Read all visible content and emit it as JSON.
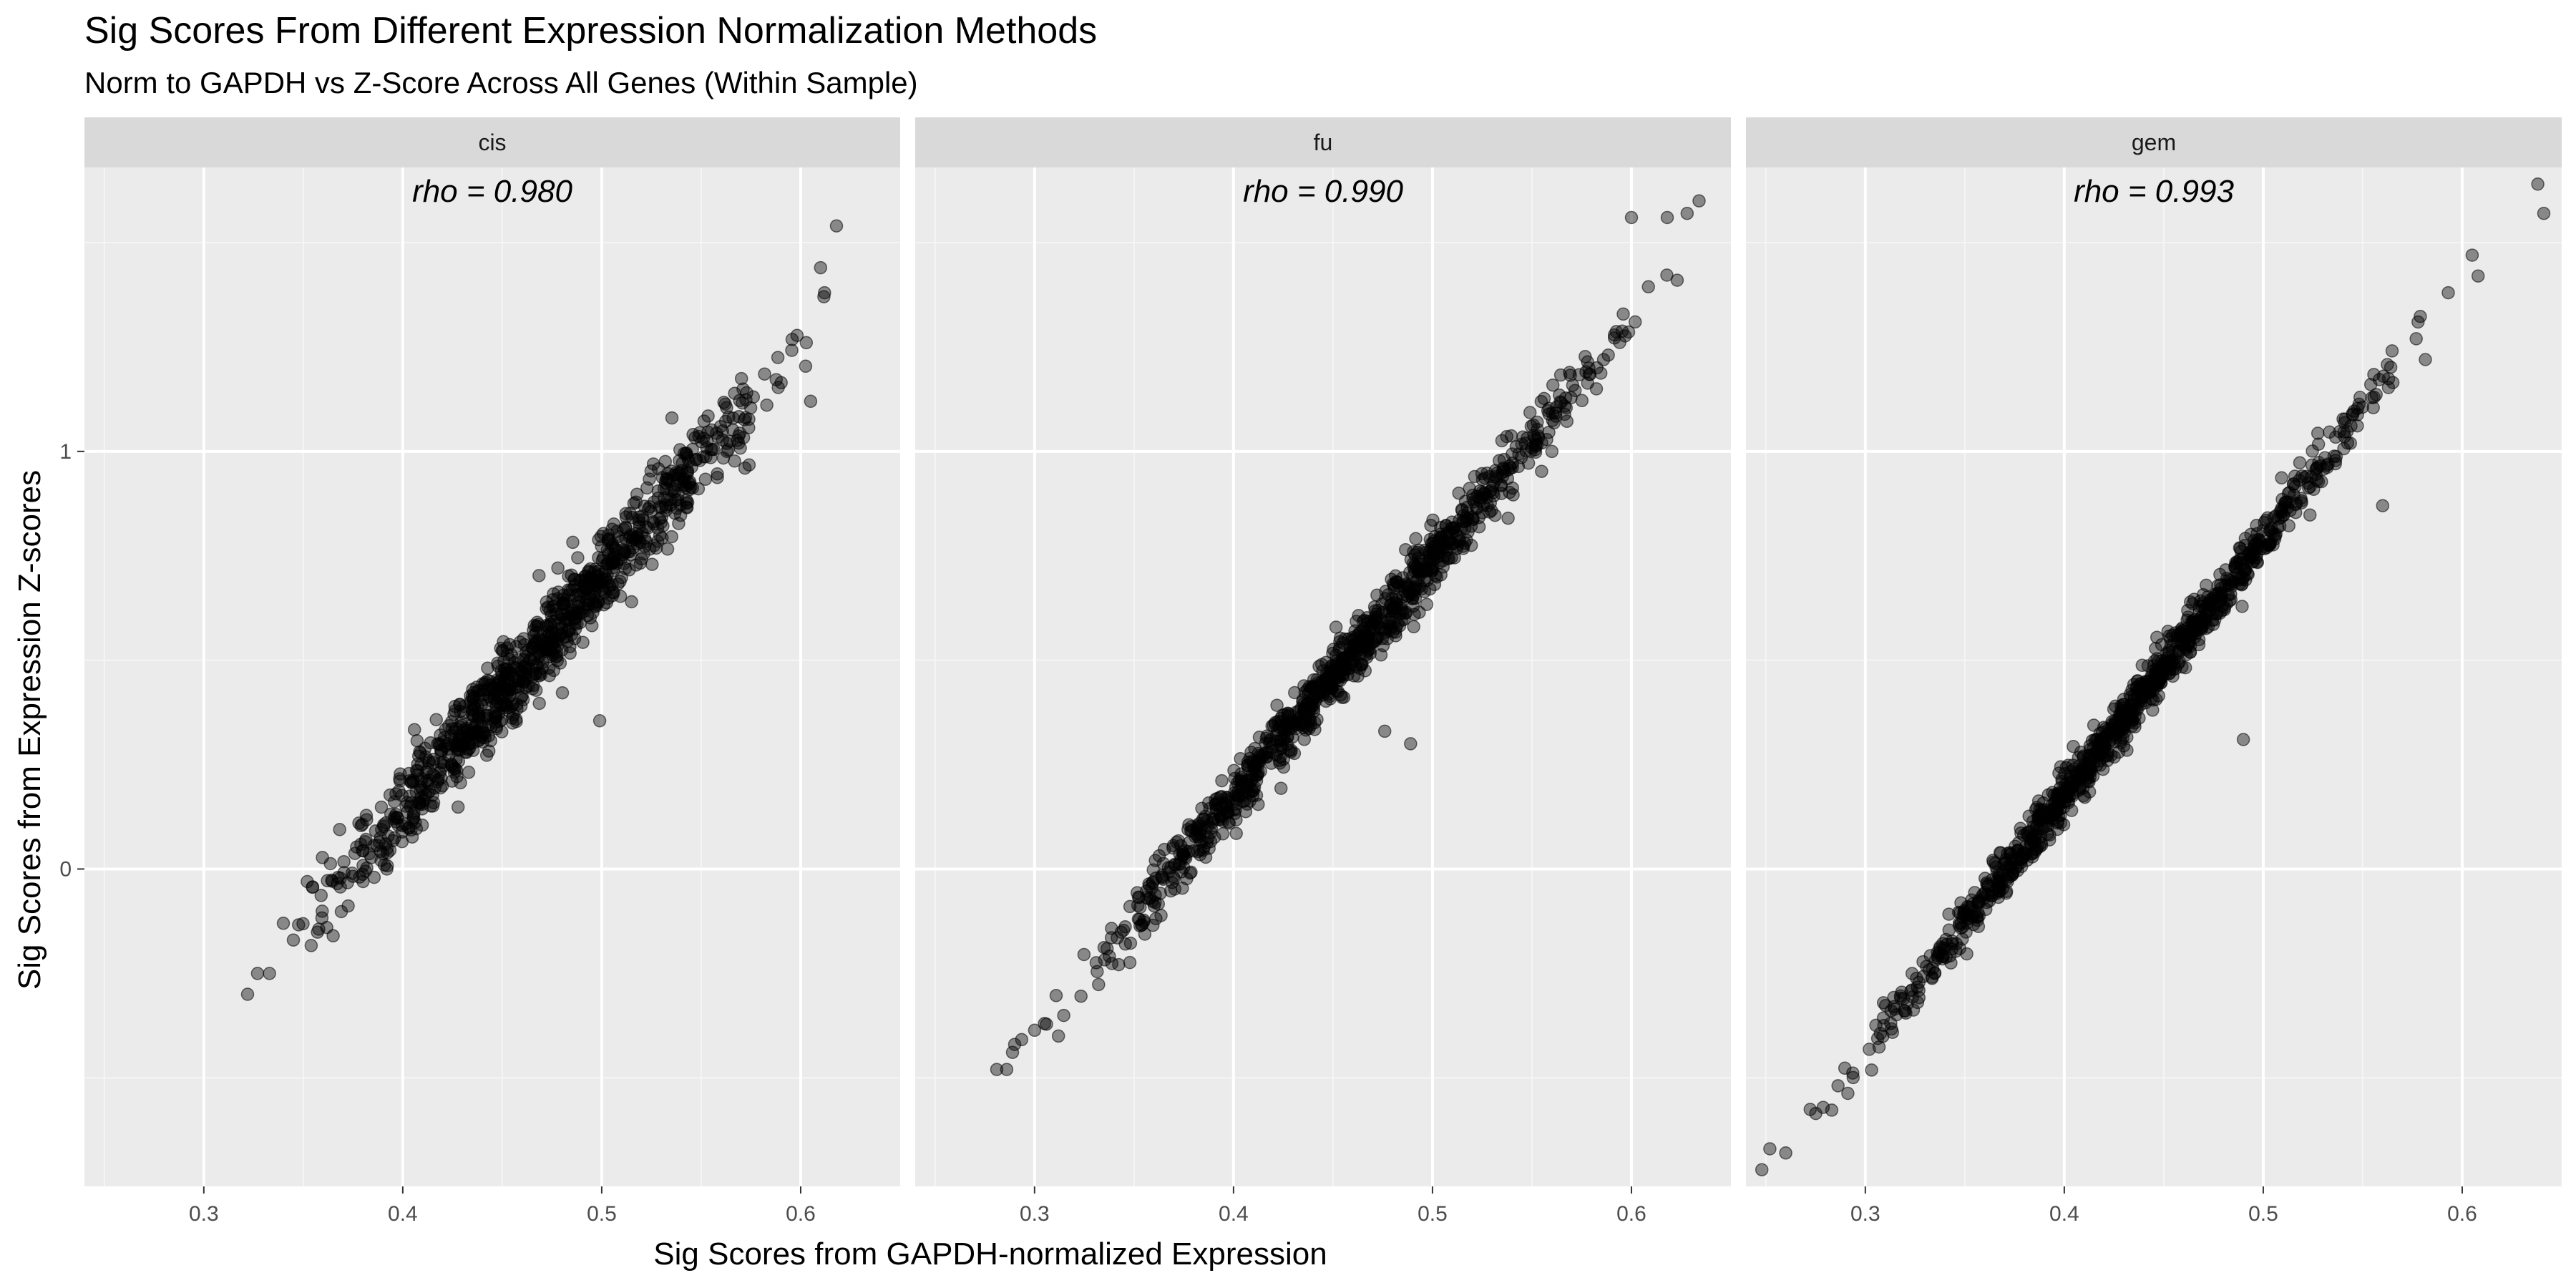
{
  "chart_data": {
    "type": "scatter",
    "title": "Sig Scores From Different Expression Normalization Methods",
    "subtitle": "Norm to GAPDH vs Z-Score Across All Genes (Within Sample)",
    "xlabel": "Sig Scores from GAPDH-normalized Expression",
    "ylabel": "Sig Scores from Expression Z-scores",
    "xlim": [
      0.24,
      0.65
    ],
    "ylim": [
      -0.76,
      1.68
    ],
    "x_ticks": [
      "0.3",
      "0.4",
      "0.5",
      "0.6"
    ],
    "y_ticks": [
      "0",
      "1"
    ],
    "x_tick_values": [
      0.3,
      0.4,
      0.5,
      0.6
    ],
    "y_tick_values": [
      0,
      1
    ],
    "grid": true,
    "point_color": "#000000",
    "point_alpha": 0.42,
    "facets": [
      {
        "label": "cis",
        "annotation": "rho = 0.980",
        "trend": {
          "x_start": 0.32,
          "x_end": 0.62,
          "slope": 5.55,
          "intercept": -2.07,
          "noise_sd": 0.05,
          "n": 950,
          "seed": 11
        },
        "points": [
          {
            "x": 0.322,
            "y": -0.3
          },
          {
            "x": 0.327,
            "y": -0.25
          },
          {
            "x": 0.333,
            "y": -0.25
          },
          {
            "x": 0.34,
            "y": -0.13
          },
          {
            "x": 0.345,
            "y": -0.17
          },
          {
            "x": 0.352,
            "y": -0.03
          },
          {
            "x": 0.365,
            "y": -0.16
          },
          {
            "x": 0.38,
            "y": -0.03
          },
          {
            "x": 0.392,
            "y": 0.0
          },
          {
            "x": 0.499,
            "y": 0.355
          },
          {
            "x": 0.515,
            "y": 0.64
          },
          {
            "x": 0.572,
            "y": 0.96
          },
          {
            "x": 0.605,
            "y": 1.12
          },
          {
            "x": 0.61,
            "y": 1.44
          },
          {
            "x": 0.618,
            "y": 1.54
          },
          {
            "x": 0.612,
            "y": 1.38
          }
        ]
      },
      {
        "label": "fu",
        "annotation": "rho = 0.990",
        "trend": {
          "x_start": 0.28,
          "x_end": 0.63,
          "slope": 5.68,
          "intercept": -2.1,
          "noise_sd": 0.035,
          "n": 950,
          "seed": 23
        },
        "points": [
          {
            "x": 0.281,
            "y": -0.48
          },
          {
            "x": 0.286,
            "y": -0.48
          },
          {
            "x": 0.29,
            "y": -0.42
          },
          {
            "x": 0.305,
            "y": -0.37
          },
          {
            "x": 0.312,
            "y": -0.4
          },
          {
            "x": 0.489,
            "y": 0.3
          },
          {
            "x": 0.476,
            "y": 0.33
          },
          {
            "x": 0.538,
            "y": 0.84
          },
          {
            "x": 0.56,
            "y": 1.0
          },
          {
            "x": 0.6,
            "y": 1.56
          },
          {
            "x": 0.618,
            "y": 1.56
          },
          {
            "x": 0.628,
            "y": 1.57
          },
          {
            "x": 0.634,
            "y": 1.6
          },
          {
            "x": 0.623,
            "y": 1.41
          }
        ]
      },
      {
        "label": "gem",
        "annotation": "rho = 0.993",
        "trend": {
          "x_start": 0.25,
          "x_end": 0.61,
          "slope": 6.14,
          "intercept": -2.28,
          "noise_sd": 0.03,
          "n": 1000,
          "seed": 37
        },
        "points": [
          {
            "x": 0.248,
            "y": -0.72
          },
          {
            "x": 0.252,
            "y": -0.67
          },
          {
            "x": 0.26,
            "y": -0.68
          },
          {
            "x": 0.49,
            "y": 0.31
          },
          {
            "x": 0.56,
            "y": 0.87
          },
          {
            "x": 0.593,
            "y": 1.38
          },
          {
            "x": 0.605,
            "y": 1.47
          },
          {
            "x": 0.608,
            "y": 1.42
          },
          {
            "x": 0.638,
            "y": 1.64
          },
          {
            "x": 0.641,
            "y": 1.57
          }
        ]
      }
    ]
  }
}
